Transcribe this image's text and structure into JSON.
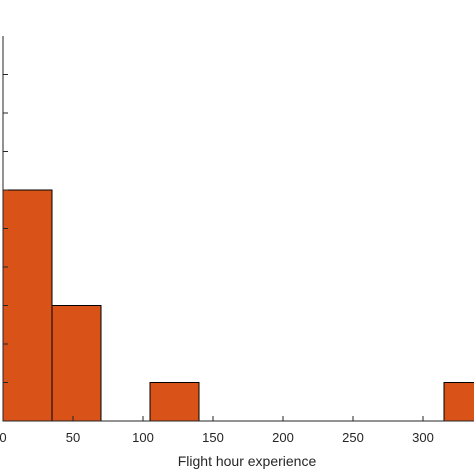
{
  "chart_data": {
    "type": "bar",
    "title": "",
    "xlabel": "Flight hour experience",
    "ylabel": "",
    "xlim": [
      0,
      340
    ],
    "ylim": [
      0,
      10
    ],
    "xticks": [
      "0",
      "50",
      "100",
      "150",
      "200",
      "250",
      "300"
    ],
    "bar_color": "#d95319",
    "edge_color": "#000000",
    "bins": [
      {
        "x0": 0,
        "x1": 35,
        "count": 6
      },
      {
        "x0": 35,
        "x1": 70,
        "count": 3
      },
      {
        "x0": 70,
        "x1": 105,
        "count": 0
      },
      {
        "x0": 105,
        "x1": 140,
        "count": 1
      },
      {
        "x0": 140,
        "x1": 175,
        "count": 0
      },
      {
        "x0": 175,
        "x1": 210,
        "count": 0
      },
      {
        "x0": 210,
        "x1": 245,
        "count": 0
      },
      {
        "x0": 245,
        "x1": 280,
        "count": 0
      },
      {
        "x0": 280,
        "x1": 315,
        "count": 0
      },
      {
        "x0": 315,
        "x1": 350,
        "count": 1
      }
    ],
    "grid": false
  }
}
